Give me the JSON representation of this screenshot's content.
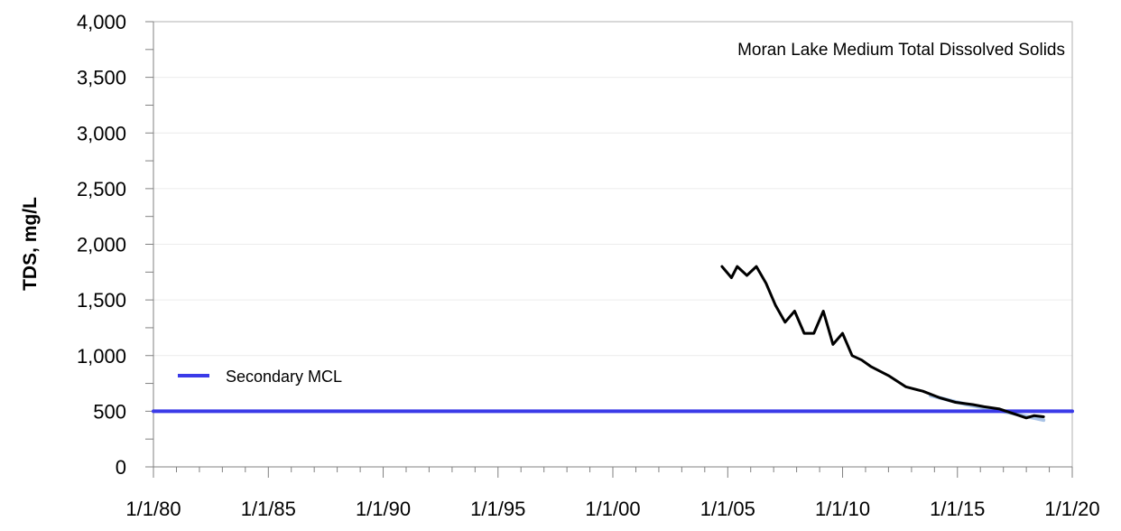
{
  "chart_data": {
    "type": "line",
    "title": "Moran Lake Medium Total Dissolved Solids",
    "ylabel": "TDS, mg/L",
    "xlabel": "",
    "ylim": [
      0,
      4000
    ],
    "xlim": [
      "1980-01-01",
      "2020-01-01"
    ],
    "y_ticks": [
      0,
      500,
      1000,
      1500,
      2000,
      2500,
      3000,
      3500,
      4000
    ],
    "y_tick_labels": [
      "0",
      "500",
      "1,000",
      "1,500",
      "2,000",
      "2,500",
      "3,000",
      "3,500",
      "4,000"
    ],
    "x_ticks": [
      "1980-01-01",
      "1985-01-01",
      "1990-01-01",
      "1995-01-01",
      "2000-01-01",
      "2005-01-01",
      "2010-01-01",
      "2015-01-01",
      "2020-01-01"
    ],
    "x_tick_labels": [
      "1/1/80",
      "1/1/85",
      "1/1/90",
      "1/1/95",
      "1/1/00",
      "1/1/05",
      "1/1/10",
      "1/1/15",
      "1/1/20"
    ],
    "grid": true,
    "legend": {
      "placement": "lower-left"
    },
    "series": [
      {
        "kind": "measured",
        "color": "#000000",
        "x": [
          "2004-10-01",
          "2005-03-01",
          "2005-06-01",
          "2005-11-01",
          "2006-04-01",
          "2006-09-01",
          "2007-02-01",
          "2007-07-01",
          "2007-12-01",
          "2008-05-01",
          "2008-10-01",
          "2009-03-01",
          "2009-08-01",
          "2010-01-01",
          "2010-06-01",
          "2010-11-01",
          "2011-04-01",
          "2012-01-01",
          "2012-10-01",
          "2013-07-01",
          "2014-04-01",
          "2014-12-01",
          "2015-09-01",
          "2016-03-01",
          "2016-11-01",
          "2017-06-01",
          "2018-01-01",
          "2018-05-01",
          "2018-10-01"
        ],
        "values": [
          1800,
          1700,
          1800,
          1720,
          1800,
          1650,
          1450,
          1300,
          1400,
          1200,
          1200,
          1400,
          1100,
          1200,
          1000,
          960,
          900,
          820,
          720,
          680,
          620,
          580,
          560,
          540,
          520,
          480,
          440,
          460,
          450
        ]
      },
      {
        "kind": "trend",
        "color": "#a9c3e6",
        "x": [
          "2013-11-01",
          "2015-06-01",
          "2016-06-01",
          "2017-06-01",
          "2018-10-01"
        ],
        "values": [
          640,
          560,
          520,
          480,
          420
        ]
      },
      {
        "name": "Secondary MCL",
        "kind": "reference",
        "color": "#3a3ae8",
        "x": [
          "1980-01-01",
          "2020-01-01"
        ],
        "values": [
          500,
          500
        ]
      }
    ]
  }
}
